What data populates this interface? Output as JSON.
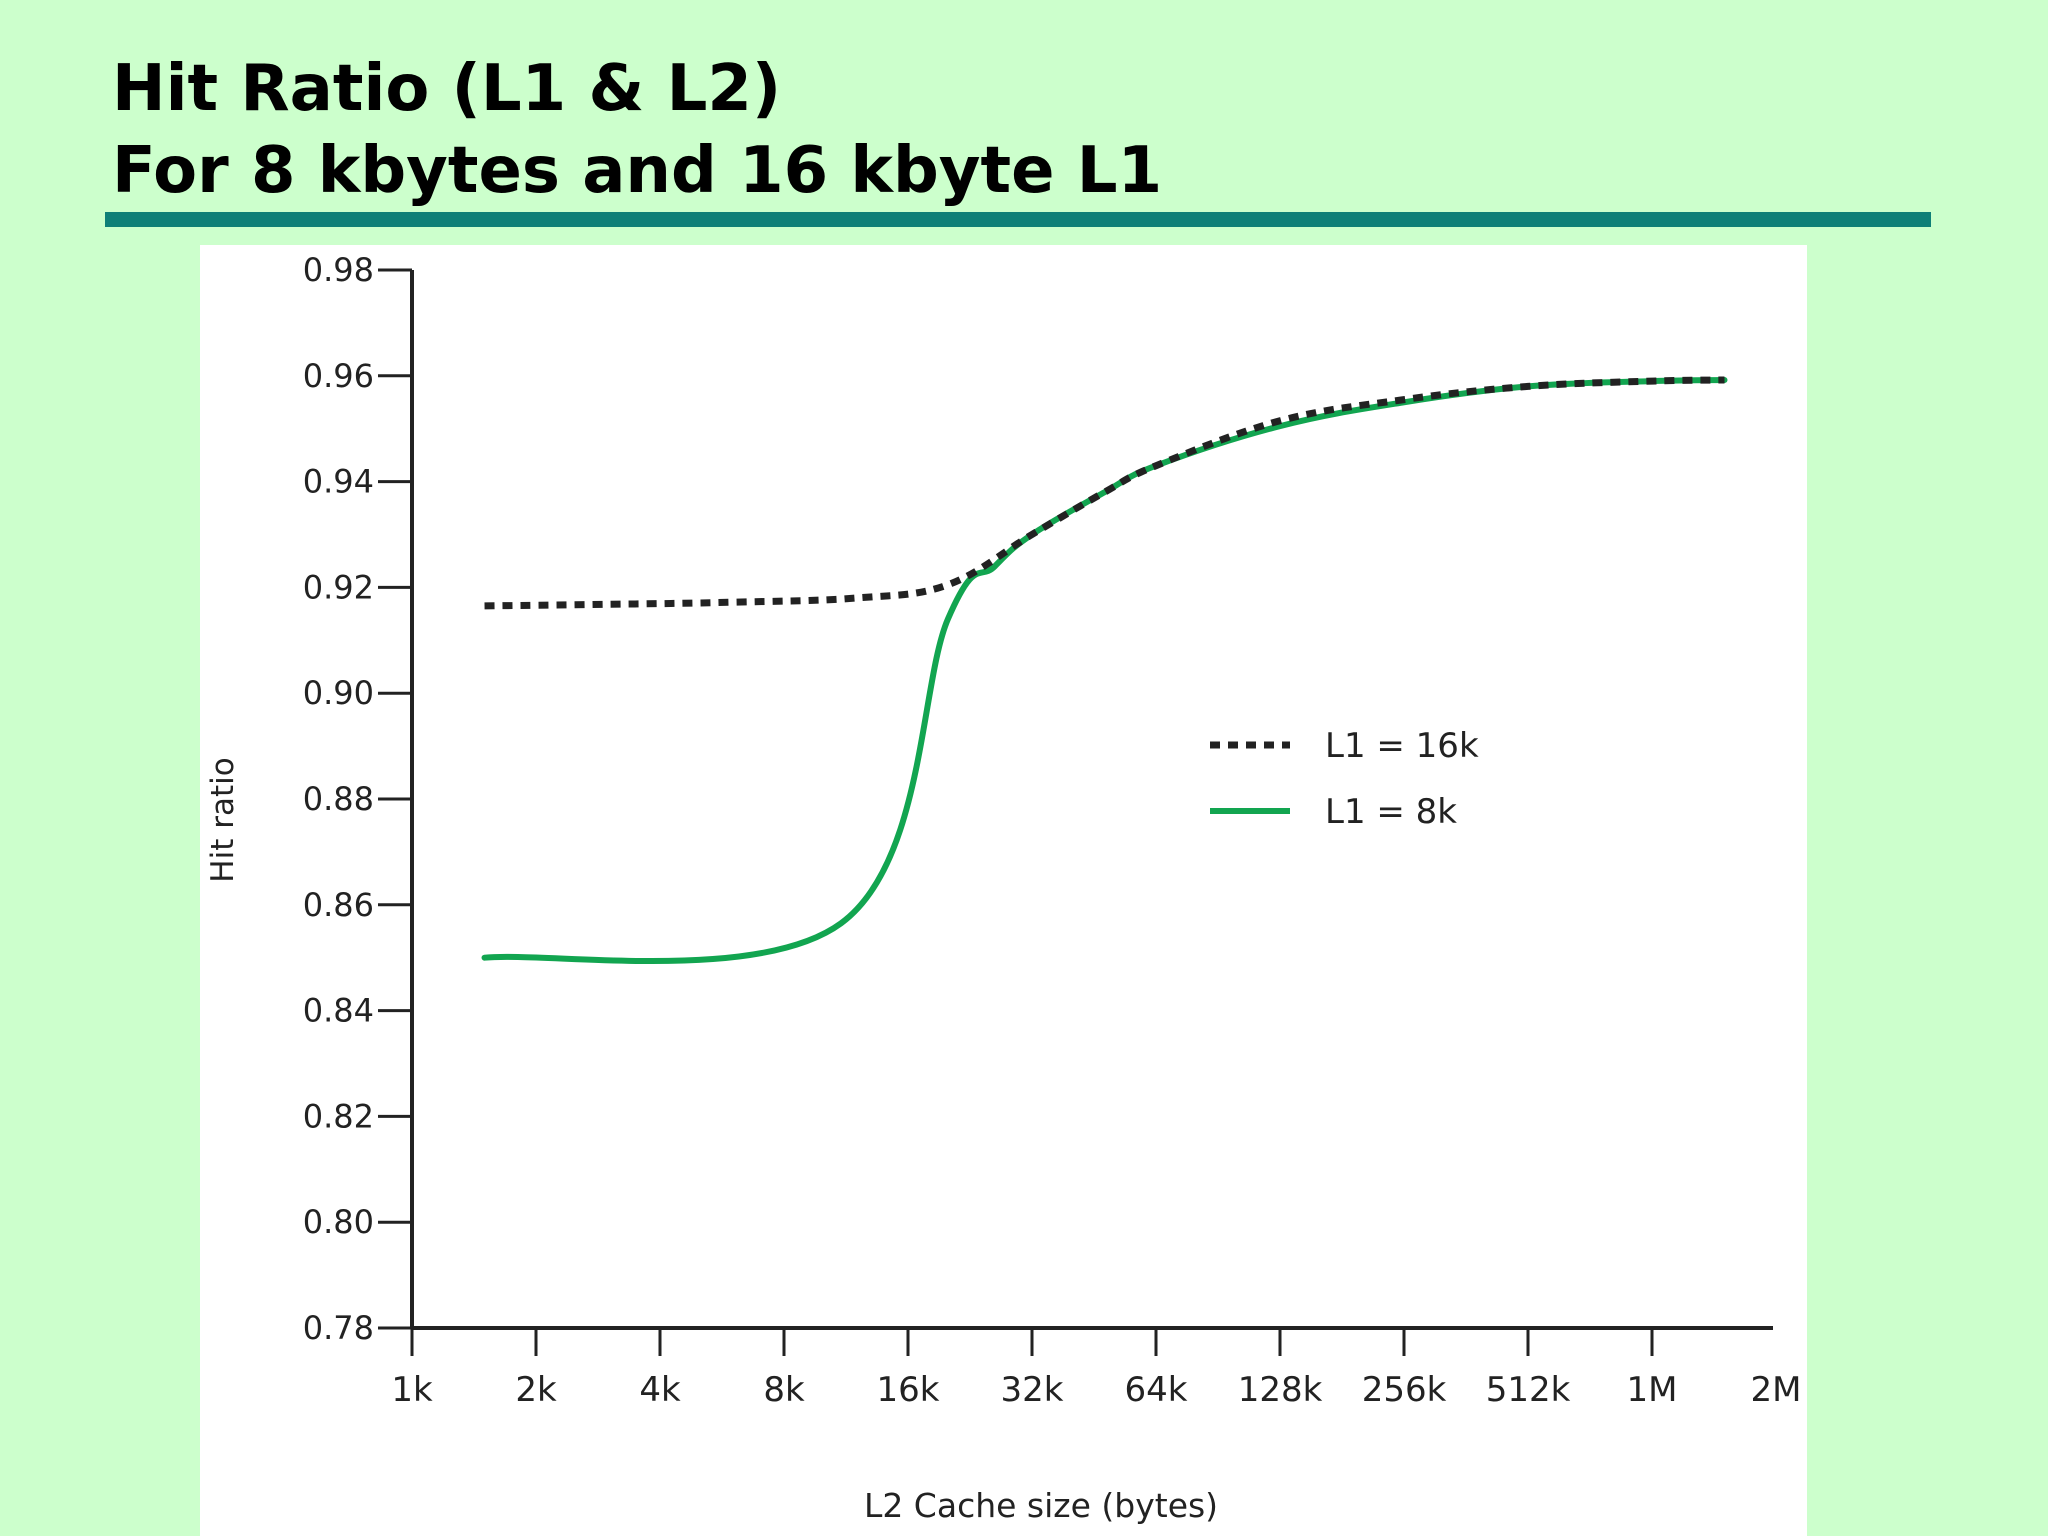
{
  "slide": {
    "title_line1": "Hit Ratio (L1 & L2)",
    "title_line2": "For 8 kbytes and 16 kbyte L1"
  },
  "colors": {
    "background": "#ccffcc",
    "title_rule": "#0e7f77",
    "series_l1_16k": "#222222",
    "series_l1_8k": "#12a550"
  },
  "chart_data": {
    "type": "line",
    "xlabel": "L2 Cache size (bytes)",
    "ylabel": "Hit ratio",
    "x_categories": [
      "1k",
      "2k",
      "4k",
      "8k",
      "16k",
      "32k",
      "64k",
      "128k",
      "256k",
      "512k",
      "1M",
      "2M"
    ],
    "x_scale": "log2",
    "ylim": [
      0.78,
      0.98
    ],
    "y_ticks": [
      "0.78",
      "0.80",
      "0.82",
      "0.84",
      "0.86",
      "0.88",
      "0.90",
      "0.92",
      "0.94",
      "0.96",
      "0.98"
    ],
    "legend_position": "center-right",
    "series": [
      {
        "name": "L1 = 16k",
        "style": "dotted",
        "points": [
          [
            "1.5k",
            0.9165
          ],
          [
            "3k",
            0.9168
          ],
          [
            "6k",
            0.9172
          ],
          [
            "12k",
            0.918
          ],
          [
            "20k",
            0.9205
          ],
          [
            "32k",
            0.93
          ],
          [
            "48k",
            0.938
          ],
          [
            "64k",
            0.943
          ],
          [
            "128k",
            0.9515
          ],
          [
            "256k",
            0.9555
          ],
          [
            "512k",
            0.958
          ],
          [
            "1M",
            0.959
          ],
          [
            "1.5M",
            0.9592
          ]
        ]
      },
      {
        "name": "L1 = 8k",
        "style": "solid",
        "points": [
          [
            "1.5k",
            0.85
          ],
          [
            "11k",
            0.8565
          ],
          [
            "20k",
            0.914
          ],
          [
            "26k",
            0.924
          ],
          [
            "32k",
            0.93
          ],
          [
            "48k",
            0.938
          ],
          [
            "64k",
            0.943
          ],
          [
            "128k",
            0.9505
          ],
          [
            "256k",
            0.955
          ],
          [
            "512k",
            0.958
          ],
          [
            "1M",
            0.959
          ],
          [
            "1.5M",
            0.9592
          ]
        ]
      }
    ]
  }
}
